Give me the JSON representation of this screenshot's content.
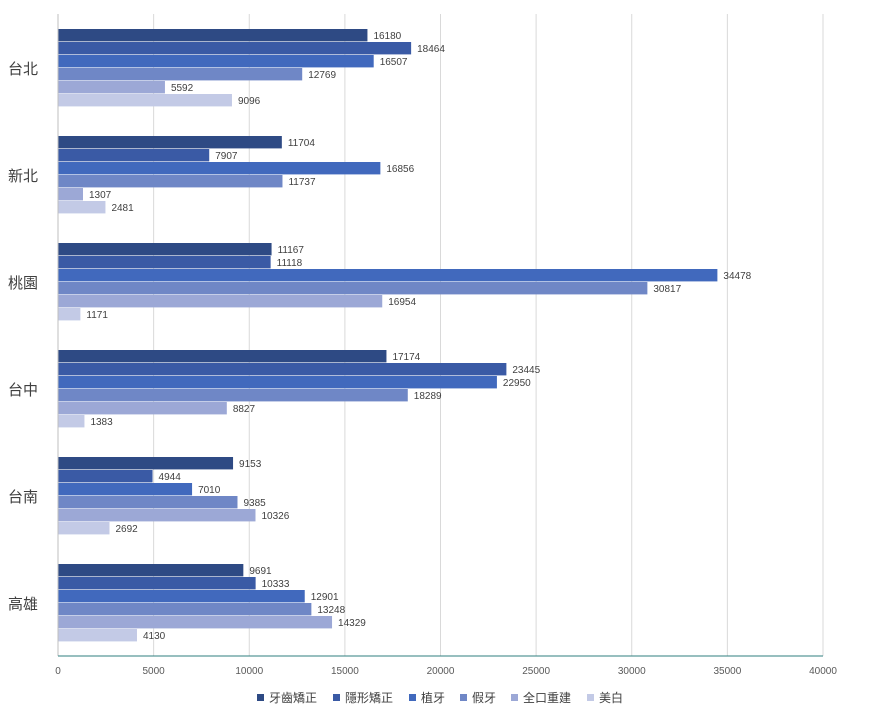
{
  "chart_data": {
    "type": "bar",
    "orientation": "horizontal",
    "title": "",
    "xlabel": "",
    "ylabel": "",
    "xlim": [
      0,
      40000
    ],
    "x_ticks": [
      "0",
      "5000",
      "10000",
      "15000",
      "20000",
      "25000",
      "30000",
      "35000",
      "40000"
    ],
    "grid": true,
    "legend_position": "bottom",
    "categories": [
      "台北",
      "新北",
      "桃園",
      "台中",
      "台南",
      "高雄"
    ],
    "series": [
      {
        "name": "牙齒矯正",
        "color": "#2e4a84",
        "values": [
          16180,
          11704,
          11167,
          17174,
          9153,
          9691
        ]
      },
      {
        "name": "隱形矯正",
        "color": "#3a5aa5",
        "values": [
          18464,
          7907,
          11118,
          23445,
          4944,
          10333
        ]
      },
      {
        "name": "植牙",
        "color": "#4169bd",
        "values": [
          16507,
          16856,
          34478,
          22950,
          7010,
          12901
        ]
      },
      {
        "name": "假牙",
        "color": "#6f87c6",
        "values": [
          12769,
          11737,
          30817,
          18289,
          9385,
          13248
        ]
      },
      {
        "name": "全口重建",
        "color": "#9ca8d6",
        "values": [
          5592,
          1307,
          16954,
          8827,
          10326,
          14329
        ]
      },
      {
        "name": "美白",
        "color": "#c3cae6",
        "values": [
          9096,
          2481,
          1171,
          1383,
          2692,
          4130
        ]
      }
    ]
  }
}
